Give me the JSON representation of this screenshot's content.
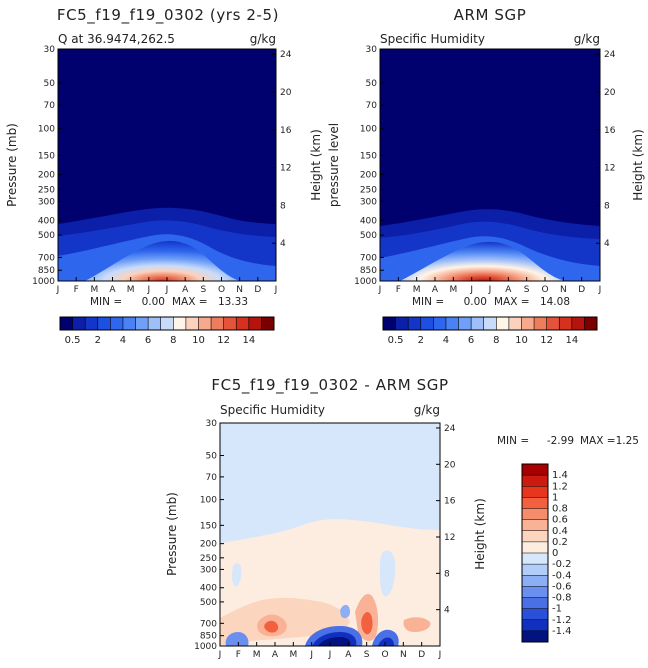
{
  "chart_data": [
    {
      "type": "contour",
      "title": "FC5_f19_f19_0302 (yrs 2-5)",
      "subtitle_left": "Q at 36.9474,262.5",
      "subtitle_right": "g/kg",
      "ylabel": "Pressure (mb)",
      "y2label": "Height (km)",
      "x_ticks": [
        "J",
        "F",
        "M",
        "A",
        "M",
        "J",
        "J",
        "A",
        "S",
        "O",
        "N",
        "D",
        "J"
      ],
      "y_ticks": [
        "30",
        "50",
        "70",
        "100",
        "150",
        "200",
        "250",
        "300",
        "400",
        "500",
        "700",
        "850",
        "1000"
      ],
      "y2_ticks": [
        "24",
        "20",
        "16",
        "12",
        "8",
        "4"
      ],
      "min_label": "MIN =",
      "min_value": "0.00",
      "max_label": "MAX =",
      "max_value": "13.33",
      "peak_month": 6.4,
      "peak_value": 13.33
    },
    {
      "type": "contour",
      "title": "ARM SGP",
      "subtitle_left": "Specific Humidity",
      "subtitle_right": "g/kg",
      "ylabel": "pressure level",
      "y2label": "Height (km)",
      "x_ticks": [
        "J",
        "F",
        "M",
        "A",
        "M",
        "J",
        "J",
        "A",
        "S",
        "O",
        "N",
        "D",
        "J"
      ],
      "y_ticks": [
        "30",
        "50",
        "70",
        "100",
        "150",
        "200",
        "250",
        "300",
        "400",
        "500",
        "700",
        "850",
        "1000"
      ],
      "y2_ticks": [
        "24",
        "20",
        "16",
        "12",
        "8",
        "4"
      ],
      "min_label": "MIN =",
      "min_value": "0.00",
      "max_label": "MAX =",
      "max_value": "14.08",
      "peak_month": 6.6,
      "peak_value": 14.08
    },
    {
      "type": "contour",
      "title": "FC5_f19_f19_0302 - ARM SGP",
      "subtitle_left": "Specific Humidity",
      "subtitle_right": "g/kg",
      "ylabel": "Pressure (mb)",
      "y2label": "Height (km)",
      "x_ticks": [
        "J",
        "F",
        "M",
        "A",
        "M",
        "J",
        "J",
        "A",
        "S",
        "O",
        "N",
        "D",
        "J"
      ],
      "y_ticks": [
        "30",
        "50",
        "70",
        "100",
        "150",
        "200",
        "250",
        "300",
        "400",
        "500",
        "700",
        "850",
        "1000"
      ],
      "y2_ticks": [
        "24",
        "20",
        "16",
        "12",
        "8",
        "4"
      ],
      "min_label": "MIN =",
      "min_value": "-2.99",
      "max_label": "MAX =",
      "max_value": "1.25"
    }
  ],
  "colorbar_q": {
    "labels": [
      "0.5",
      "2",
      "4",
      "6",
      "8",
      "10",
      "12",
      "14"
    ],
    "colors": [
      "#00006e",
      "#0b1fa8",
      "#1336c8",
      "#1d50e0",
      "#2f66ee",
      "#4a82f4",
      "#6f9ff6",
      "#9fbff8",
      "#c8dcfa",
      "#fff4e8",
      "#fbd2bd",
      "#f6a98d",
      "#ee7d5d",
      "#e4533a",
      "#d6301e",
      "#b5140e",
      "#7a0000"
    ]
  },
  "colorbar_diff": {
    "labels": [
      "1.4",
      "1.2",
      "1",
      "0.8",
      "0.6",
      "0.4",
      "0.2",
      "0",
      "-0.2",
      "-0.4",
      "-0.6",
      "-0.8",
      "-1",
      "-1.2",
      "-1.4"
    ],
    "colors": [
      "#a80000",
      "#cc1a10",
      "#e8361e",
      "#f26040",
      "#f58c6c",
      "#f9b296",
      "#fcd5bf",
      "#fdece0",
      "#d6e6fb",
      "#b2cdf8",
      "#8caef4",
      "#6a8fee",
      "#4a70e6",
      "#2a4fd8",
      "#1230c0",
      "#02127e"
    ]
  }
}
